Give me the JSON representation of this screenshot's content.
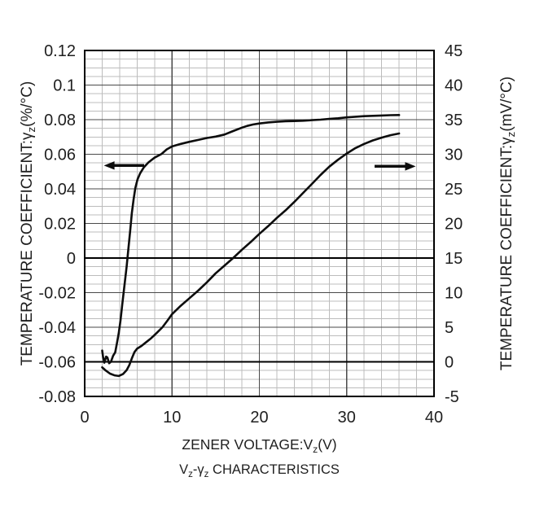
{
  "chart_data": {
    "type": "line",
    "title": "",
    "caption_text": "Vz-γz CHARACTERISTICS",
    "caption_parts": [
      {
        "t": "V"
      },
      {
        "t": "z",
        "sub": true
      },
      {
        "t": "-γ"
      },
      {
        "t": "z",
        "sub": true
      },
      {
        "t": " CHARACTERISTICS"
      }
    ],
    "x_axis": {
      "label_text": "ZENER VOLTAGE:Vz(V)",
      "label_parts": [
        {
          "t": "ZENER VOLTAGE:V"
        },
        {
          "t": "z",
          "sub": true
        },
        {
          "t": "(V)"
        }
      ],
      "min": 0,
      "max": 40,
      "major_step": 10,
      "minor_step": 2,
      "ticks": [
        0,
        10,
        20,
        30,
        40
      ],
      "tick_labels": [
        "0",
        "10",
        "20",
        "30",
        "40"
      ]
    },
    "left_axis": {
      "label_text": "TEMPERATURE COEFFICIENT:γz(%/°C)",
      "label_parts": [
        {
          "t": "TEMPERATURE COEFFICIENT:γ"
        },
        {
          "t": "z",
          "sub": true
        },
        {
          "t": "(%/°C)"
        }
      ],
      "min": -0.08,
      "max": 0.12,
      "major_step": 0.02,
      "minor_step": 0.005,
      "tick_labels": [
        "0.12",
        "0.1",
        "0.08",
        "0.06",
        "0.04",
        "0.02",
        "0",
        "-0.02",
        "-0.04",
        "-0.06",
        "-0.08"
      ],
      "emphasized_value": 0
    },
    "right_axis": {
      "label_text": "TEMPERATURE COEFFICIENT:γz(mV/°C)",
      "label_parts": [
        {
          "t": "TEMPERATURE COEFFICIENT:γ"
        },
        {
          "t": "z",
          "sub": true
        },
        {
          "t": "(mV/°C)"
        }
      ],
      "min": -5,
      "max": 45,
      "major_step": 5,
      "tick_labels": [
        "45",
        "40",
        "35",
        "30",
        "25",
        "20",
        "15",
        "10",
        "5",
        "0",
        "-5"
      ],
      "emphasized_value": 0
    },
    "grid": {
      "show": true,
      "h_minor_step_left_units": 0.005,
      "v_minor_step_volts": 2
    },
    "series": [
      {
        "name": "gamma-z-percent-per-degC",
        "axis": "left",
        "points": [
          [
            2.0,
            -0.0535
          ],
          [
            2.1,
            -0.057
          ],
          [
            2.25,
            -0.0605
          ],
          [
            2.45,
            -0.057
          ],
          [
            2.6,
            -0.0575
          ],
          [
            2.8,
            -0.0608
          ],
          [
            3.0,
            -0.06
          ],
          [
            3.25,
            -0.0565
          ],
          [
            3.5,
            -0.0545
          ],
          [
            3.7,
            -0.049
          ],
          [
            3.9,
            -0.0435
          ],
          [
            4.1,
            -0.036
          ],
          [
            4.3,
            -0.027
          ],
          [
            4.55,
            -0.016
          ],
          [
            4.8,
            -0.005
          ],
          [
            5.0,
            0.005
          ],
          [
            5.2,
            0.0155
          ],
          [
            5.4,
            0.026
          ],
          [
            5.6,
            0.034
          ],
          [
            5.8,
            0.0405
          ],
          [
            6.05,
            0.0455
          ],
          [
            6.35,
            0.049
          ],
          [
            6.75,
            0.0523
          ],
          [
            7.3,
            0.0553
          ],
          [
            8.0,
            0.058
          ],
          [
            8.8,
            0.0602
          ],
          [
            9.4,
            0.0628
          ],
          [
            10,
            0.0645
          ],
          [
            11,
            0.066
          ],
          [
            12,
            0.0672
          ],
          [
            13,
            0.0683
          ],
          [
            14,
            0.0694
          ],
          [
            15,
            0.0702
          ],
          [
            16,
            0.0714
          ],
          [
            17,
            0.0734
          ],
          [
            18,
            0.0754
          ],
          [
            18.6,
            0.0764
          ],
          [
            19.3,
            0.0772
          ],
          [
            20,
            0.0778
          ],
          [
            21,
            0.0784
          ],
          [
            22,
            0.0788
          ],
          [
            23,
            0.0791
          ],
          [
            24,
            0.0792
          ],
          [
            25,
            0.0794
          ],
          [
            26,
            0.0797
          ],
          [
            27,
            0.08
          ],
          [
            28,
            0.0804
          ],
          [
            29,
            0.0808
          ],
          [
            30,
            0.0813
          ],
          [
            31,
            0.0817
          ],
          [
            32,
            0.082
          ],
          [
            33,
            0.0822
          ],
          [
            34,
            0.0824
          ],
          [
            35,
            0.0826
          ],
          [
            36,
            0.0827
          ]
        ]
      },
      {
        "name": "gamma-z-mV-per-degC",
        "axis": "right",
        "points": [
          [
            2.0,
            -0.8
          ],
          [
            2.4,
            -1.25
          ],
          [
            2.9,
            -1.7
          ],
          [
            3.4,
            -1.95
          ],
          [
            3.9,
            -2.05
          ],
          [
            4.4,
            -1.75
          ],
          [
            4.8,
            -1.2
          ],
          [
            5.1,
            -0.5
          ],
          [
            5.4,
            0.5
          ],
          [
            5.7,
            1.4
          ],
          [
            6.0,
            1.9
          ],
          [
            6.5,
            2.3
          ],
          [
            7.0,
            2.8
          ],
          [
            7.6,
            3.4
          ],
          [
            8.2,
            4.1
          ],
          [
            8.9,
            5.0
          ],
          [
            9.5,
            6.0
          ],
          [
            10,
            6.9
          ],
          [
            11,
            8.1
          ],
          [
            12,
            9.2
          ],
          [
            13,
            10.3
          ],
          [
            14,
            11.5
          ],
          [
            15,
            12.8
          ],
          [
            16,
            13.9
          ],
          [
            17,
            15.0
          ],
          [
            18,
            16.2
          ],
          [
            19,
            17.3
          ],
          [
            20,
            18.5
          ],
          [
            21,
            19.6
          ],
          [
            22,
            20.8
          ],
          [
            23,
            21.9
          ],
          [
            24,
            23.1
          ],
          [
            25,
            24.4
          ],
          [
            26,
            25.7
          ],
          [
            27,
            27.0
          ],
          [
            28,
            28.2
          ],
          [
            29,
            29.2
          ],
          [
            30,
            30.1
          ],
          [
            31,
            30.9
          ],
          [
            32,
            31.5
          ],
          [
            33,
            32.0
          ],
          [
            34,
            32.4
          ],
          [
            35,
            32.75
          ],
          [
            36,
            33.0
          ]
        ]
      }
    ],
    "arrows": [
      {
        "name": "left-axis-pointer-arrow",
        "direction": "left",
        "x_from": 6.8,
        "x_to": 2.2,
        "y_left": 0.0535
      },
      {
        "name": "right-axis-pointer-arrow",
        "direction": "right",
        "x_from": 33.2,
        "x_to": 37.9,
        "y_left": 0.053
      }
    ],
    "colors": {
      "background": "#ffffff",
      "curve": "#0d0d0d",
      "major_grid": "#4a4a4a",
      "minor_grid": "#bcbcbc",
      "zero_line": "#000000",
      "border": "#000000",
      "text": "#1f1f1f"
    }
  }
}
